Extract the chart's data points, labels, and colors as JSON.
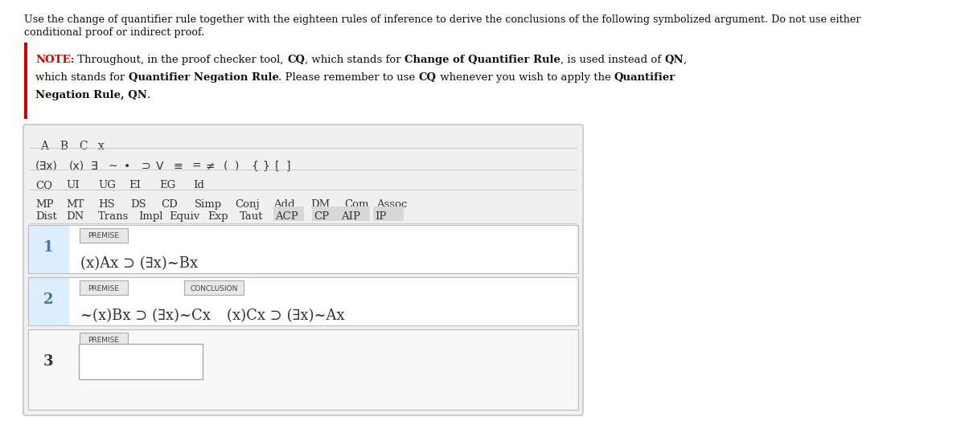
{
  "top_line1": "Use the change of quantifier rule together with the eighteen rules of inference to derive the conclusions of the following symbolized argument. Do not use either",
  "top_line2": "conditional proof or indirect proof.",
  "toolbar_row1": [
    "A",
    "B",
    "C",
    "x"
  ],
  "toolbar_row2_items": [
    "(∃x)",
    "(x)",
    "∃",
    "~",
    "•",
    "⊃",
    "V",
    "≡",
    "=",
    "≠",
    "(",
    ")",
    "{",
    "}",
    "[",
    "]"
  ],
  "toolbar_row3": [
    "CQ",
    "UI",
    "UG",
    "EI",
    "EG",
    "Id"
  ],
  "toolbar_row4": [
    "MP",
    "MT",
    "HS",
    "DS",
    "CD",
    "Simp",
    "Conj",
    "Add",
    "DM",
    "Com",
    "Assoc"
  ],
  "toolbar_row5": [
    "Dist",
    "DN",
    "Trans",
    "Impl",
    "Equiv",
    "Exp",
    "Taut",
    "ACP",
    "CP",
    "AIP",
    "IP"
  ],
  "row1_num": "1",
  "row1_tag": "PREMISE",
  "row1_formula": "(x)Ax ⊃ (∃x)~Bx",
  "row2_num": "2",
  "row2_tag1": "PREMISE",
  "row2_tag2": "CONCLUSION",
  "row2_formula": "~(x)Bx ⊃ (∃x)~Cx",
  "row2_conclusion": "(x)Cx ⊃ (∃x)~Ax",
  "row3_num": "3",
  "row3_tag": "PREMISE",
  "bg_color": "#ffffff",
  "panel_bg": "#f0f0f0",
  "panel_border": "#bbbbbb",
  "row_bg": "#ffffff",
  "row_highlight": "#ddeeff",
  "row_num_color": "#4477aa",
  "formula_color": "#333333",
  "note_red": "#cc0000",
  "tag_bg": "#e8e8e8",
  "tag_border": "#aaaaaa",
  "gray_bg": "#d8d8d8",
  "text_color": "#333333",
  "sep_color": "#cccccc"
}
